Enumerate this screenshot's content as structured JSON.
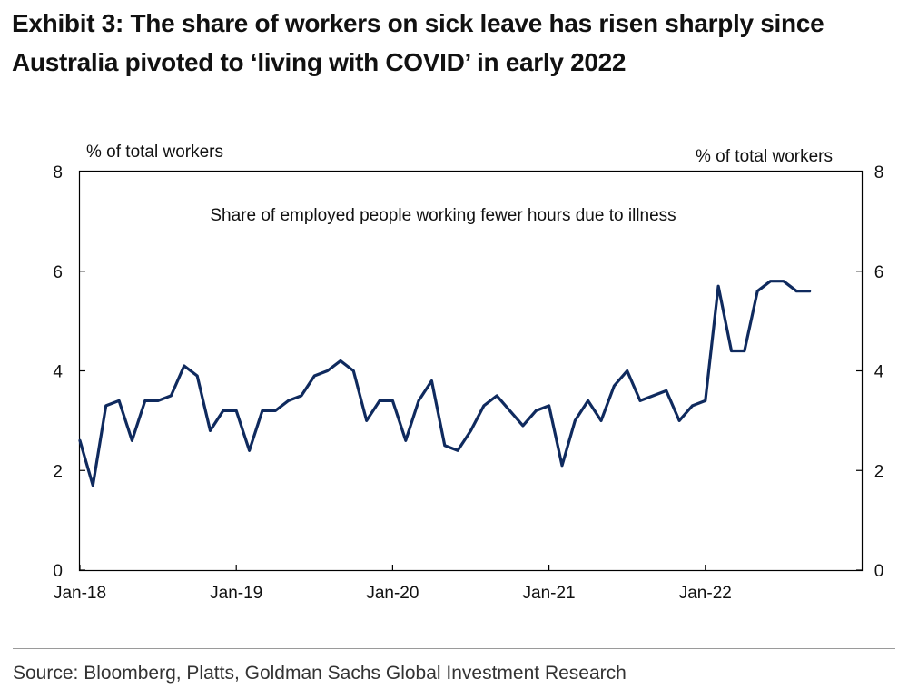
{
  "header": {
    "title_line1": "Exhibit 3: The share of workers on sick leave has risen sharply since",
    "title_line2": "Australia pivoted to ‘living with COVID’ in early 2022"
  },
  "footer": {
    "source": "Source: Bloomberg, Platts, Goldman Sachs Global Investment Research"
  },
  "colors": {
    "line": "#0f2a5e",
    "axis": "#000000",
    "text": "#111111"
  },
  "chart_data": {
    "type": "line",
    "title": "",
    "annotation": "Share of employed people working fewer hours due to illness",
    "ylabel_left": "% of total workers",
    "ylabel_right": "% of total workers",
    "xlabel": "",
    "ylim": [
      0,
      8
    ],
    "yticks": [
      0,
      2,
      4,
      6,
      8
    ],
    "xticks": [
      "Jan-18",
      "Jan-19",
      "Jan-20",
      "Jan-21",
      "Jan-22"
    ],
    "x_months_total": 60,
    "grid": false,
    "series": [
      {
        "name": "Share of employed people working fewer hours due to illness",
        "start": "Jan-18",
        "frequency": "monthly",
        "values": [
          2.6,
          1.7,
          3.3,
          3.4,
          2.6,
          3.4,
          3.4,
          3.5,
          4.1,
          3.9,
          2.8,
          3.2,
          3.2,
          2.4,
          3.2,
          3.2,
          3.4,
          3.5,
          3.9,
          4.0,
          4.2,
          4.0,
          3.0,
          3.4,
          3.4,
          2.6,
          3.4,
          3.8,
          2.5,
          2.4,
          2.8,
          3.3,
          3.5,
          3.2,
          2.9,
          3.2,
          3.3,
          2.1,
          3.0,
          3.4,
          3.0,
          3.7,
          4.0,
          3.4,
          3.5,
          3.6,
          3.0,
          3.3,
          3.4,
          5.7,
          4.4,
          4.4,
          5.6,
          5.8,
          5.8,
          5.6,
          5.6
        ]
      }
    ]
  }
}
